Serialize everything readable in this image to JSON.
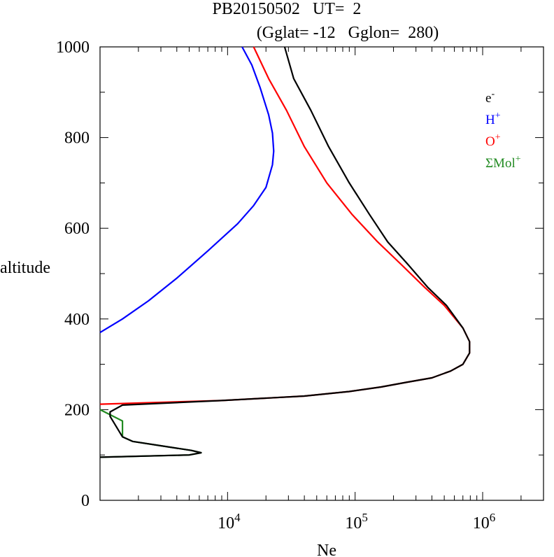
{
  "chart_data": {
    "type": "line",
    "title_line1": "PB20150502   UT=  2",
    "title_line2": "(Gglat= -12   Gglon=  280)",
    "xlabel": "Ne",
    "ylabel": "altitude",
    "x_scale": "log",
    "xlim": [
      1000,
      3000000
    ],
    "ylim": [
      0,
      1000
    ],
    "grid": false,
    "legend_position": "top-right",
    "x_ticks": [
      {
        "value": 10000,
        "base": "10",
        "exp": "4"
      },
      {
        "value": 100000,
        "base": "10",
        "exp": "5"
      },
      {
        "value": 1000000,
        "base": "10",
        "exp": "6"
      }
    ],
    "y_ticks": [
      {
        "value": 0,
        "label": "0"
      },
      {
        "value": 200,
        "label": "200"
      },
      {
        "value": 400,
        "label": "400"
      },
      {
        "value": 600,
        "label": "600"
      },
      {
        "value": 800,
        "label": "800"
      },
      {
        "value": 1000,
        "label": "1000"
      }
    ],
    "series": [
      {
        "name": "ΣMol+",
        "legend_base": "ΣMol",
        "legend_sup": "+",
        "color": "#228B22",
        "points": [
          [
            1000,
            200
          ],
          [
            1500,
            175
          ],
          [
            1500,
            140
          ],
          [
            1800,
            130
          ],
          [
            5200,
            110
          ],
          [
            6200,
            105
          ],
          [
            5000,
            100
          ],
          [
            1000,
            95
          ]
        ]
      },
      {
        "name": "H+",
        "legend_base": "H",
        "legend_sup": "+",
        "color": "#0000ff",
        "points": [
          [
            1000,
            370
          ],
          [
            1500,
            400
          ],
          [
            2400,
            440
          ],
          [
            4000,
            490
          ],
          [
            7000,
            550
          ],
          [
            12000,
            610
          ],
          [
            16000,
            650
          ],
          [
            20000,
            690
          ],
          [
            22500,
            740
          ],
          [
            23000,
            770
          ],
          [
            22500,
            810
          ],
          [
            21000,
            850
          ],
          [
            18000,
            910
          ],
          [
            15500,
            960
          ],
          [
            13000,
            1000
          ]
        ]
      },
      {
        "name": "O+",
        "legend_base": "O",
        "legend_sup": "+",
        "color": "#ff0000",
        "points": [
          [
            1000,
            212
          ],
          [
            9000,
            220
          ],
          [
            40000,
            230
          ],
          [
            90000,
            240
          ],
          [
            160000,
            250
          ],
          [
            250000,
            260
          ],
          [
            400000,
            270
          ],
          [
            560000,
            285
          ],
          [
            700000,
            300
          ],
          [
            790000,
            325
          ],
          [
            790000,
            350
          ],
          [
            700000,
            380
          ],
          [
            500000,
            430
          ],
          [
            350000,
            470
          ],
          [
            230000,
            520
          ],
          [
            150000,
            570
          ],
          [
            95000,
            630
          ],
          [
            60000,
            700
          ],
          [
            40000,
            780
          ],
          [
            29000,
            860
          ],
          [
            21000,
            930
          ],
          [
            16000,
            1000
          ]
        ]
      },
      {
        "name": "e-",
        "legend_base": "e",
        "legend_sup": "-",
        "color": "#000000",
        "points": [
          [
            1000,
            95
          ],
          [
            5000,
            100
          ],
          [
            6200,
            105
          ],
          [
            5200,
            110
          ],
          [
            1800,
            130
          ],
          [
            1500,
            140
          ],
          [
            1200,
            185
          ],
          [
            1200,
            195
          ],
          [
            1500,
            210
          ],
          [
            9000,
            220
          ],
          [
            40000,
            230
          ],
          [
            90000,
            240
          ],
          [
            160000,
            250
          ],
          [
            250000,
            260
          ],
          [
            400000,
            270
          ],
          [
            560000,
            285
          ],
          [
            700000,
            300
          ],
          [
            790000,
            325
          ],
          [
            790000,
            350
          ],
          [
            700000,
            380
          ],
          [
            520000,
            430
          ],
          [
            370000,
            470
          ],
          [
            260000,
            520
          ],
          [
            180000,
            570
          ],
          [
            130000,
            630
          ],
          [
            90000,
            700
          ],
          [
            62000,
            780
          ],
          [
            45000,
            860
          ],
          [
            33000,
            930
          ],
          [
            28000,
            1000
          ]
        ]
      }
    ],
    "legend_order": [
      "e-",
      "H+",
      "O+",
      "ΣMol+"
    ]
  }
}
